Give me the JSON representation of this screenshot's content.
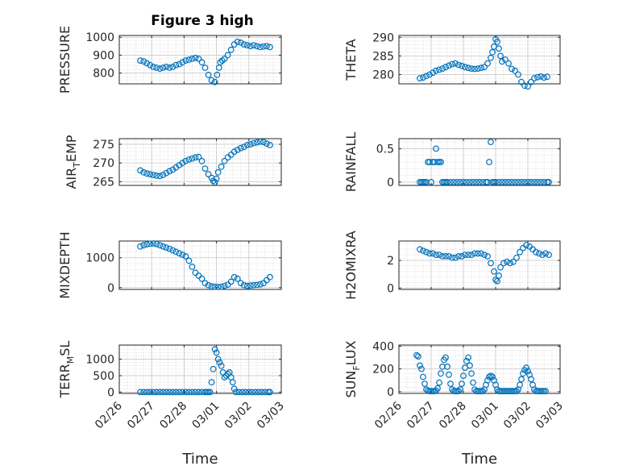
{
  "chart_data": {
    "title": "Figure 3 high",
    "series_color": "#0072BD",
    "grid": true,
    "xlabel": "Time",
    "xtick_labels": [
      "02/26",
      "02/27",
      "02/28",
      "03/01",
      "03/02",
      "03/03"
    ],
    "x_unit": "days since 02/26",
    "panels": [
      {
        "id": "pressure",
        "type": "scatter",
        "ylabel_main": "PRESSURE",
        "ylabel_sub": "",
        "ylabel_tail": "",
        "ylim": [
          740,
          1010
        ],
        "yticks": [
          800,
          900,
          1000
        ],
        "xlabel": "",
        "x": [
          0.65,
          0.75,
          0.85,
          0.95,
          1.05,
          1.15,
          1.25,
          1.35,
          1.45,
          1.55,
          1.65,
          1.75,
          1.85,
          1.95,
          2.05,
          2.15,
          2.25,
          2.35,
          2.45,
          2.55,
          2.65,
          2.75,
          2.85,
          2.95,
          3.02,
          3.08,
          3.12,
          3.18,
          3.25,
          3.35,
          3.45,
          3.55,
          3.65,
          3.75,
          3.85,
          3.95,
          4.05,
          4.15,
          4.25,
          4.35,
          4.45,
          4.55,
          4.65
        ],
        "y": [
          870,
          865,
          855,
          845,
          835,
          830,
          825,
          830,
          835,
          830,
          835,
          845,
          850,
          860,
          870,
          875,
          880,
          885,
          880,
          860,
          830,
          790,
          760,
          750,
          790,
          830,
          860,
          870,
          880,
          900,
          930,
          960,
          975,
          970,
          960,
          955,
          950,
          955,
          950,
          945,
          948,
          950,
          945
        ]
      },
      {
        "id": "theta",
        "type": "scatter",
        "ylabel_main": "THETA",
        "ylabel_sub": "",
        "ylabel_tail": "",
        "ylim": [
          277.5,
          290.5
        ],
        "yticks": [
          280,
          285,
          290
        ],
        "xlabel": "",
        "x": [
          0.65,
          0.75,
          0.85,
          0.95,
          1.05,
          1.15,
          1.25,
          1.35,
          1.45,
          1.55,
          1.65,
          1.75,
          1.85,
          1.95,
          2.05,
          2.15,
          2.25,
          2.35,
          2.45,
          2.55,
          2.65,
          2.75,
          2.85,
          2.9,
          2.95,
          3.0,
          3.05,
          3.1,
          3.15,
          3.2,
          3.3,
          3.4,
          3.5,
          3.6,
          3.7,
          3.8,
          3.9,
          4.0,
          4.1,
          4.2,
          4.3,
          4.4,
          4.5,
          4.6
        ],
        "y": [
          279,
          279.2,
          279.6,
          280,
          280.5,
          281,
          281.3,
          281.6,
          282,
          282.4,
          282.8,
          283,
          282.6,
          282.3,
          282,
          281.8,
          281.6,
          281.5,
          281.6,
          281.8,
          282,
          283,
          284.5,
          286,
          287.5,
          289.5,
          288.8,
          287,
          285,
          283.5,
          284,
          283,
          281.5,
          281,
          280,
          278,
          277,
          276.8,
          278,
          279,
          279.3,
          279.5,
          279.2,
          279.4
        ]
      },
      {
        "id": "air_temp",
        "type": "scatter",
        "ylabel_main": "AIR",
        "ylabel_sub": "T",
        "ylabel_tail": "EMP",
        "ylim": [
          264,
          276.5
        ],
        "yticks": [
          265,
          270,
          275
        ],
        "xlabel": "",
        "x": [
          0.65,
          0.75,
          0.85,
          0.95,
          1.05,
          1.15,
          1.25,
          1.35,
          1.45,
          1.55,
          1.65,
          1.75,
          1.85,
          1.95,
          2.05,
          2.15,
          2.25,
          2.35,
          2.45,
          2.55,
          2.65,
          2.75,
          2.85,
          2.9,
          2.95,
          3.0,
          3.05,
          3.15,
          3.25,
          3.35,
          3.45,
          3.55,
          3.65,
          3.75,
          3.85,
          3.95,
          4.05,
          4.15,
          4.25,
          4.35,
          4.45,
          4.55,
          4.65
        ],
        "y": [
          268,
          267.5,
          267.2,
          267,
          266.8,
          266.6,
          266.5,
          266.8,
          267.3,
          267.8,
          268.2,
          268.8,
          269.4,
          270,
          270.5,
          270.9,
          271.2,
          271.5,
          271.6,
          270.5,
          268.5,
          267,
          266,
          265.2,
          264.8,
          265.8,
          267.5,
          269,
          270.5,
          271.5,
          272.2,
          273,
          273.5,
          274,
          274.3,
          274.8,
          275,
          275.3,
          275.5,
          275.7,
          275.6,
          275.2,
          274.8
        ]
      },
      {
        "id": "rainfall",
        "type": "scatter",
        "ylabel_main": "RAINFALL",
        "ylabel_sub": "",
        "ylabel_tail": "",
        "ylim": [
          -0.05,
          0.65
        ],
        "yticks": [
          0,
          0.5
        ],
        "xlabel": "",
        "x": [
          0.65,
          0.7,
          0.75,
          0.8,
          0.85,
          0.9,
          0.95,
          1.0,
          1.05,
          1.1,
          1.15,
          1.2,
          1.25,
          1.3,
          1.35,
          1.4,
          1.45,
          1.5,
          1.6,
          1.7,
          1.8,
          1.9,
          2.0,
          2.1,
          2.2,
          2.3,
          2.4,
          2.5,
          2.6,
          2.7,
          2.75,
          2.8,
          2.85,
          2.9,
          2.95,
          3.0,
          3.1,
          3.2,
          3.3,
          3.4,
          3.5,
          3.6,
          3.7,
          3.8,
          3.9,
          4.0,
          4.1,
          4.2,
          4.3,
          4.4,
          4.5,
          4.6,
          4.65
        ],
        "y": [
          0,
          0,
          0,
          0,
          0,
          0.3,
          0.3,
          0,
          0.3,
          0.3,
          0.5,
          0.3,
          0.3,
          0.3,
          0,
          0,
          0,
          0,
          0,
          0,
          0,
          0,
          0,
          0,
          0,
          0,
          0,
          0,
          0,
          0,
          0,
          0.3,
          0.6,
          0,
          0,
          0,
          0,
          0,
          0,
          0,
          0,
          0,
          0,
          0,
          0,
          0,
          0,
          0,
          0,
          0,
          0,
          0,
          0
        ]
      },
      {
        "id": "mixdepth",
        "type": "scatter",
        "ylabel_main": "MIXDEPTH",
        "ylabel_sub": "",
        "ylabel_tail": "",
        "ylim": [
          -60,
          1560
        ],
        "yticks": [
          0,
          1000
        ],
        "xlabel": "",
        "x": [
          0.65,
          0.75,
          0.85,
          0.95,
          1.05,
          1.15,
          1.25,
          1.35,
          1.45,
          1.55,
          1.65,
          1.75,
          1.85,
          1.95,
          2.05,
          2.15,
          2.25,
          2.35,
          2.45,
          2.55,
          2.65,
          2.75,
          2.85,
          2.95,
          3.05,
          3.15,
          3.25,
          3.35,
          3.45,
          3.55,
          3.65,
          3.75,
          3.85,
          3.95,
          4.05,
          4.15,
          4.25,
          4.35,
          4.45,
          4.55,
          4.65
        ],
        "y": [
          1380,
          1420,
          1450,
          1470,
          1480,
          1460,
          1420,
          1380,
          1340,
          1300,
          1250,
          1200,
          1150,
          1100,
          1050,
          900,
          700,
          500,
          400,
          300,
          150,
          80,
          40,
          30,
          20,
          30,
          60,
          100,
          200,
          350,
          300,
          150,
          80,
          60,
          70,
          80,
          90,
          110,
          150,
          250,
          350
        ]
      },
      {
        "id": "h2omixra",
        "type": "scatter",
        "ylabel_main": "H2OMIXRA",
        "ylabel_sub": "",
        "ylabel_tail": "",
        "ylim": [
          -0.1,
          3.4
        ],
        "yticks": [
          0,
          2
        ],
        "xlabel": "",
        "x": [
          0.65,
          0.75,
          0.85,
          0.95,
          1.05,
          1.15,
          1.25,
          1.35,
          1.45,
          1.55,
          1.65,
          1.75,
          1.85,
          1.95,
          2.05,
          2.15,
          2.25,
          2.35,
          2.45,
          2.55,
          2.65,
          2.75,
          2.85,
          2.95,
          3.0,
          3.05,
          3.1,
          3.15,
          3.25,
          3.35,
          3.45,
          3.55,
          3.65,
          3.75,
          3.85,
          3.95,
          4.05,
          4.15,
          4.25,
          4.35,
          4.45,
          4.55,
          4.65
        ],
        "y": [
          2.8,
          2.7,
          2.6,
          2.5,
          2.5,
          2.4,
          2.4,
          2.3,
          2.3,
          2.3,
          2.2,
          2.2,
          2.3,
          2.3,
          2.4,
          2.4,
          2.4,
          2.5,
          2.5,
          2.5,
          2.4,
          2.3,
          1.8,
          1.2,
          0.6,
          0.5,
          0.9,
          1.5,
          1.8,
          1.9,
          1.8,
          1.9,
          2.2,
          2.6,
          2.9,
          3.1,
          3.0,
          2.8,
          2.6,
          2.5,
          2.4,
          2.5,
          2.4
        ]
      },
      {
        "id": "terr_msl",
        "type": "scatter",
        "ylabel_main": "TERR",
        "ylabel_sub": "M",
        "ylabel_tail": "SL",
        "ylim": [
          -40,
          1430
        ],
        "yticks": [
          0,
          500,
          1000
        ],
        "xlabel": "Time",
        "x": [
          0.65,
          0.75,
          0.85,
          0.95,
          1.05,
          1.15,
          1.25,
          1.35,
          1.45,
          1.55,
          1.65,
          1.75,
          1.85,
          1.95,
          2.05,
          2.15,
          2.25,
          2.35,
          2.45,
          2.55,
          2.65,
          2.7,
          2.75,
          2.8,
          2.85,
          2.9,
          2.95,
          3.0,
          3.05,
          3.1,
          3.15,
          3.2,
          3.25,
          3.3,
          3.35,
          3.4,
          3.45,
          3.5,
          3.55,
          3.6,
          3.7,
          3.8,
          3.9,
          4.0,
          4.1,
          4.2,
          4.3,
          4.4,
          4.5,
          4.6,
          4.65
        ],
        "y": [
          0,
          0,
          0,
          0,
          0,
          0,
          0,
          0,
          0,
          0,
          0,
          0,
          0,
          0,
          0,
          0,
          0,
          0,
          0,
          0,
          0,
          0,
          0,
          0,
          300,
          700,
          1300,
          1200,
          1000,
          900,
          800,
          600,
          450,
          500,
          550,
          600,
          450,
          300,
          100,
          0,
          0,
          0,
          0,
          0,
          0,
          0,
          0,
          0,
          0,
          0,
          0
        ]
      },
      {
        "id": "sun_flux",
        "type": "scatter",
        "ylabel_main": "SUN",
        "ylabel_sub": "F",
        "ylabel_tail": "LUX",
        "ylim": [
          -15,
          410
        ],
        "yticks": [
          0,
          200,
          400
        ],
        "xlabel": "Time",
        "x": [
          0.55,
          0.6,
          0.65,
          0.7,
          0.75,
          0.8,
          0.85,
          0.9,
          0.95,
          1.0,
          1.05,
          1.1,
          1.15,
          1.2,
          1.25,
          1.3,
          1.35,
          1.4,
          1.45,
          1.5,
          1.55,
          1.6,
          1.65,
          1.7,
          1.75,
          1.8,
          1.85,
          1.9,
          1.95,
          2.0,
          2.05,
          2.1,
          2.15,
          2.2,
          2.25,
          2.3,
          2.35,
          2.4,
          2.45,
          2.5,
          2.55,
          2.6,
          2.65,
          2.7,
          2.75,
          2.8,
          2.85,
          2.9,
          2.95,
          3.0,
          3.05,
          3.1,
          3.15,
          3.2,
          3.25,
          3.3,
          3.35,
          3.4,
          3.45,
          3.5,
          3.55,
          3.6,
          3.65,
          3.7,
          3.75,
          3.8,
          3.85,
          3.9,
          3.95,
          4.0,
          4.05,
          4.1,
          4.15,
          4.2,
          4.25,
          4.3,
          4.35,
          4.4,
          4.45,
          4.5,
          4.55
        ],
        "y": [
          320,
          310,
          230,
          200,
          130,
          70,
          20,
          10,
          5,
          5,
          5,
          5,
          10,
          30,
          80,
          160,
          220,
          280,
          300,
          220,
          150,
          70,
          20,
          5,
          5,
          5,
          5,
          20,
          70,
          140,
          210,
          270,
          300,
          230,
          160,
          80,
          20,
          5,
          5,
          5,
          5,
          5,
          20,
          60,
          100,
          130,
          140,
          130,
          100,
          60,
          20,
          5,
          5,
          5,
          5,
          5,
          5,
          5,
          5,
          5,
          5,
          5,
          5,
          20,
          60,
          110,
          160,
          190,
          210,
          180,
          150,
          110,
          60,
          20,
          5,
          5,
          5,
          5,
          5,
          5,
          5
        ]
      }
    ]
  }
}
